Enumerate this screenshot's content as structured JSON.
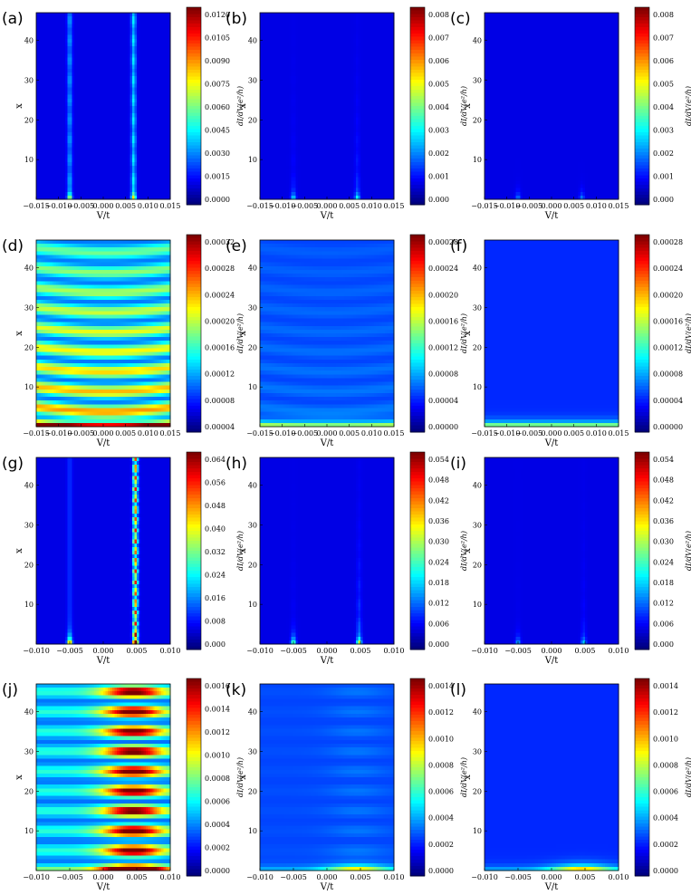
{
  "figure": {
    "x_label": "V/t",
    "y_label": "x",
    "colorbar_label": "dI/dV(e²/h)",
    "colormap": [
      "#00007f",
      "#0000ff",
      "#0080ff",
      "#00ffff",
      "#80ff80",
      "#ffff00",
      "#ff8000",
      "#ff0000",
      "#7f0000"
    ],
    "rows": [
      {
        "x_ticks": [
          "−0.015",
          "−0.010",
          "−0.005",
          "0.000",
          "0.005",
          "0.010",
          "0.015"
        ],
        "x_range": [
          -0.015,
          0.015
        ],
        "y_ticks": [
          "10",
          "20",
          "30",
          "40"
        ],
        "panels": [
          {
            "label": "(a)",
            "pattern": "vlines",
            "features": {
              "cols": [
                -0.0075,
                0.0068
              ],
              "amps": [
                0.22,
                0.3
              ],
              "peak": 0.45,
              "base": 0.0
            },
            "colorbar_ticks": [
              "0.0120",
              "0.0105",
              "0.0090",
              "0.0075",
              "0.0060",
              "0.0045",
              "0.0030",
              "0.0015",
              "0.0000"
            ]
          },
          {
            "label": "(b)",
            "pattern": "vlines_decay",
            "features": {
              "cols": [
                -0.0075,
                0.0068
              ],
              "amps": [
                0.05,
                0.09
              ],
              "peak": 0.32,
              "base": 0.0
            },
            "colorbar_ticks": [
              "0.008",
              "0.007",
              "0.006",
              "0.005",
              "0.004",
              "0.003",
              "0.002",
              "0.001",
              "0.000"
            ]
          },
          {
            "label": "(c)",
            "pattern": "vlines_decay",
            "features": {
              "cols": [
                -0.0075,
                0.0068
              ],
              "amps": [
                0.0,
                0.0
              ],
              "peak": 0.22,
              "base": 0.0
            },
            "colorbar_ticks": [
              "0.008",
              "0.007",
              "0.006",
              "0.005",
              "0.004",
              "0.003",
              "0.002",
              "0.001",
              "0.000"
            ]
          }
        ]
      },
      {
        "x_ticks": [
          "−0.015",
          "−0.010",
          "−0.005",
          "0.000",
          "0.005",
          "0.010",
          "0.015"
        ],
        "x_range": [
          -0.015,
          0.015
        ],
        "y_ticks": [
          "10",
          "20",
          "30",
          "40"
        ],
        "panels": [
          {
            "label": "(d)",
            "pattern": "hbands",
            "features": {
              "amp": 0.62,
              "base": 0.16,
              "bottom": 0.95
            },
            "colorbar_ticks": [
              "0.00032",
              "0.00028",
              "0.00024",
              "0.00020",
              "0.00016",
              "0.00012",
              "0.00008",
              "0.00004"
            ]
          },
          {
            "label": "(e)",
            "pattern": "hbands",
            "features": {
              "amp": 0.07,
              "base": 0.1,
              "bottom": 0.55
            },
            "colorbar_ticks": [
              "0.00028",
              "0.00024",
              "0.00020",
              "0.00016",
              "0.00012",
              "0.00008",
              "0.00004",
              "0.00000"
            ]
          },
          {
            "label": "(f)",
            "pattern": "hbands",
            "features": {
              "amp": 0.0,
              "base": 0.07,
              "bottom": 0.6
            },
            "colorbar_ticks": [
              "0.00028",
              "0.00024",
              "0.00020",
              "0.00016",
              "0.00012",
              "0.00008",
              "0.00004",
              "0.00000"
            ]
          }
        ]
      },
      {
        "x_ticks": [
          "−0.010",
          "−0.005",
          "0.000",
          "0.005",
          "0.010"
        ],
        "x_range": [
          -0.01,
          0.01
        ],
        "y_ticks": [
          "10",
          "20",
          "30",
          "40"
        ],
        "panels": [
          {
            "label": "(g)",
            "pattern": "vline_dots",
            "features": {
              "cols": [
                -0.005,
                0.0048
              ],
              "amps": [
                0.08,
                0.85
              ],
              "peak": 0.85,
              "base": 0.0
            },
            "colorbar_ticks": [
              "0.064",
              "0.056",
              "0.048",
              "0.040",
              "0.032",
              "0.024",
              "0.016",
              "0.008",
              "0.000"
            ]
          },
          {
            "label": "(h)",
            "pattern": "vlines_decay",
            "features": {
              "cols": [
                -0.005,
                0.0048
              ],
              "amps": [
                0.03,
                0.14
              ],
              "peak": 0.55,
              "base": 0.0
            },
            "colorbar_ticks": [
              "0.054",
              "0.048",
              "0.042",
              "0.036",
              "0.030",
              "0.024",
              "0.018",
              "0.012",
              "0.006",
              "0.000"
            ]
          },
          {
            "label": "(i)",
            "pattern": "vlines_decay",
            "features": {
              "cols": [
                -0.005,
                0.0048
              ],
              "amps": [
                0.01,
                0.05
              ],
              "peak": 0.28,
              "base": 0.0
            },
            "colorbar_ticks": [
              "0.054",
              "0.048",
              "0.042",
              "0.036",
              "0.030",
              "0.024",
              "0.018",
              "0.012",
              "0.006",
              "0.000"
            ]
          }
        ]
      },
      {
        "x_ticks": [
          "−0.010",
          "−0.005",
          "0.000",
          "0.005",
          "0.010"
        ],
        "x_range": [
          -0.01,
          0.01
        ],
        "y_ticks": [
          "10",
          "20",
          "30",
          "40"
        ],
        "panels": [
          {
            "label": "(j)",
            "pattern": "hbands_right",
            "features": {
              "amp": 0.8,
              "base": 0.15,
              "bottom": 0.6
            },
            "colorbar_ticks": [
              "0.0016",
              "0.0014",
              "0.0012",
              "0.0010",
              "0.0008",
              "0.0006",
              "0.0004",
              "0.0002",
              "0.0000"
            ]
          },
          {
            "label": "(k)",
            "pattern": "hbands_right",
            "features": {
              "amp": 0.05,
              "base": 0.1,
              "bottom": 0.55
            },
            "colorbar_ticks": [
              "0.0014",
              "0.0012",
              "0.0010",
              "0.0008",
              "0.0006",
              "0.0004",
              "0.0002",
              "0.0000"
            ]
          },
          {
            "label": "(l)",
            "pattern": "hbands_right",
            "features": {
              "amp": 0.0,
              "base": 0.07,
              "bottom": 0.7
            },
            "colorbar_ticks": [
              "0.0014",
              "0.0012",
              "0.0010",
              "0.0008",
              "0.0006",
              "0.0004",
              "0.0002",
              "0.0000"
            ]
          }
        ]
      }
    ]
  },
  "chart_data": {
    "type": "heatmap",
    "panels": [
      "(a)",
      "(b)",
      "(c)",
      "(d)",
      "(e)",
      "(f)",
      "(g)",
      "(h)",
      "(i)",
      "(j)",
      "(k)",
      "(l)"
    ],
    "xlabel": "V/t",
    "ylabel": "x",
    "colorbar_label": "dI/dV(e²/h)",
    "grid": false
  }
}
